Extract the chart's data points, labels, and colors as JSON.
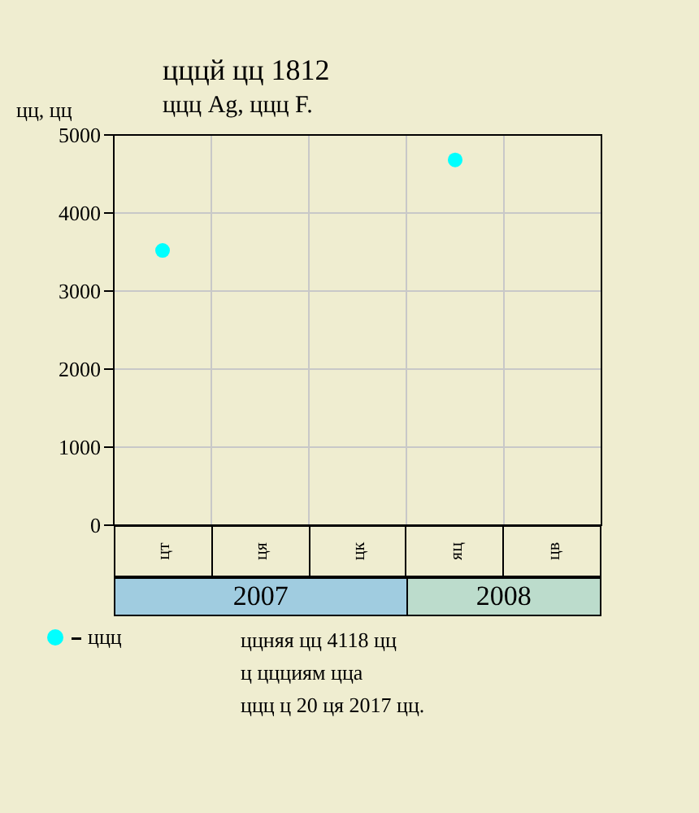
{
  "chart_data": {
    "type": "scatter",
    "title": "цццй цц 1812",
    "subtitle": "ццц Ag, ццц F.",
    "ylabel": "цц, цц",
    "categories": [
      "цт",
      "ця",
      "цк",
      "яц",
      "цв"
    ],
    "series": [
      {
        "name": "ццц",
        "color": "#00ffff",
        "values": [
          3520,
          null,
          null,
          4680,
          null
        ]
      }
    ],
    "ylim": [
      0,
      5000
    ],
    "yticks": [
      0,
      1000,
      2000,
      3000,
      4000,
      5000
    ],
    "grid": true,
    "legend": "bottom left",
    "marker": "circle",
    "annotations": [
      "2007",
      "2008",
      "ццняя цц 4118 цц",
      "ц ццциям цца",
      "ццц ц 20 ця 2017 цц."
    ]
  }
}
